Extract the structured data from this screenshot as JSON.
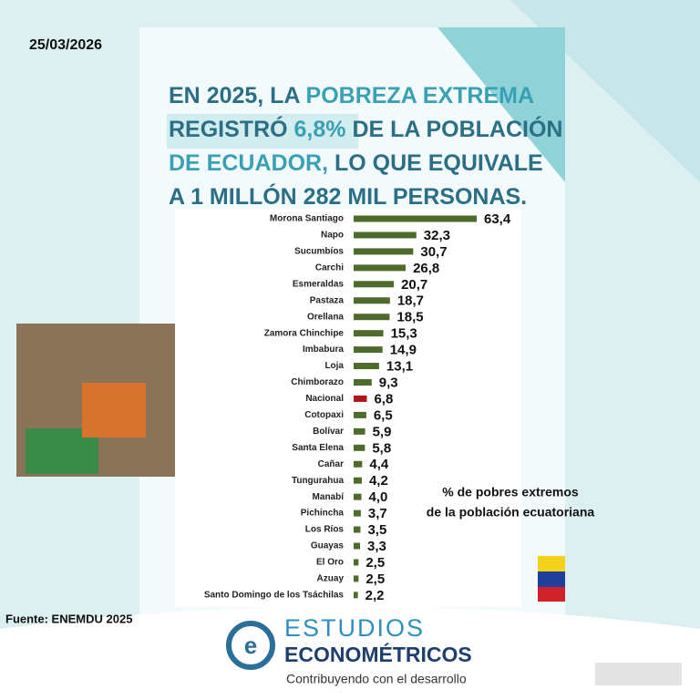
{
  "date": "25/03/2026",
  "headline": [
    [
      {
        "text": "EN 2025, LA ",
        "color": "#2a6f86"
      },
      {
        "text": "POBREZA EXTREMA",
        "color": "#39a0b5"
      }
    ],
    [
      {
        "text": "REGISTRÓ ",
        "color": "#2a6f86"
      },
      {
        "text": "6,8%",
        "color": "#39a0b5"
      },
      {
        "text": " DE LA POBLACIÓN",
        "color": "#2a6f86"
      }
    ],
    [
      {
        "text": "DE ECUADOR,",
        "color": "#39a0b5"
      },
      {
        "text": " LO QUE EQUIVALE",
        "color": "#2a6f86"
      }
    ],
    [
      {
        "text": "A 1 MILLÓN 282 MIL PERSONAS.",
        "color": "#2a6f86"
      }
    ]
  ],
  "source": "Fuente: ENEMDU 2025",
  "brand": {
    "line1": "ESTUDIOS",
    "line2": "ECONOMÉTRICOS",
    "tagline": "Contribuyendo con el desarrollo"
  },
  "chart_data": {
    "type": "hbar",
    "categories": [
      "Morona Santiago",
      "Napo",
      "Sucumbíos",
      "Carchi",
      "Esmeraldas",
      "Pastaza",
      "Orellana",
      "Zamora Chinchipe",
      "Imbabura",
      "Loja",
      "Chimborazo",
      "Nacional",
      "Cotopaxi",
      "Bolívar",
      "Santa Elena",
      "Cañar",
      "Tungurahua",
      "Manabí",
      "Pichincha",
      "Los Ríos",
      "Guayas",
      "El Oro",
      "Azuay",
      "Santo Domingo de los Tsáchilas"
    ],
    "values": [
      63.4,
      32.3,
      30.7,
      26.8,
      20.7,
      18.7,
      18.5,
      15.3,
      14.9,
      13.1,
      9.3,
      6.8,
      6.5,
      5.9,
      5.8,
      4.4,
      4.2,
      4.0,
      3.7,
      3.5,
      3.3,
      2.5,
      2.5,
      2.2
    ],
    "value_labels": [
      "63,4",
      "32,3",
      "30,7",
      "26,8",
      "20,7",
      "18,7",
      "18,5",
      "15,3",
      "14,9",
      "13,1",
      "9,3",
      "6,8",
      "6,5",
      "5,9",
      "5,8",
      "4,4",
      "4,2",
      "4,0",
      "3,7",
      "3,5",
      "3,3",
      "2,5",
      "2,5",
      "2,2"
    ],
    "colors": [
      "#4f6b2b",
      "#4f6b2b",
      "#4f6b2b",
      "#4f6b2b",
      "#4f6b2b",
      "#4f6b2b",
      "#4f6b2b",
      "#4f6b2b",
      "#4f6b2b",
      "#4f6b2b",
      "#4f6b2b",
      "#b0141b",
      "#4f6b2b",
      "#4f6b2b",
      "#4f6b2b",
      "#4f6b2b",
      "#4f6b2b",
      "#4f6b2b",
      "#4f6b2b",
      "#4f6b2b",
      "#4f6b2b",
      "#4f6b2b",
      "#4f6b2b",
      "#4f6b2b"
    ],
    "annotation": [
      "% de pobres extremos",
      "de la población ecuatoriana"
    ]
  }
}
